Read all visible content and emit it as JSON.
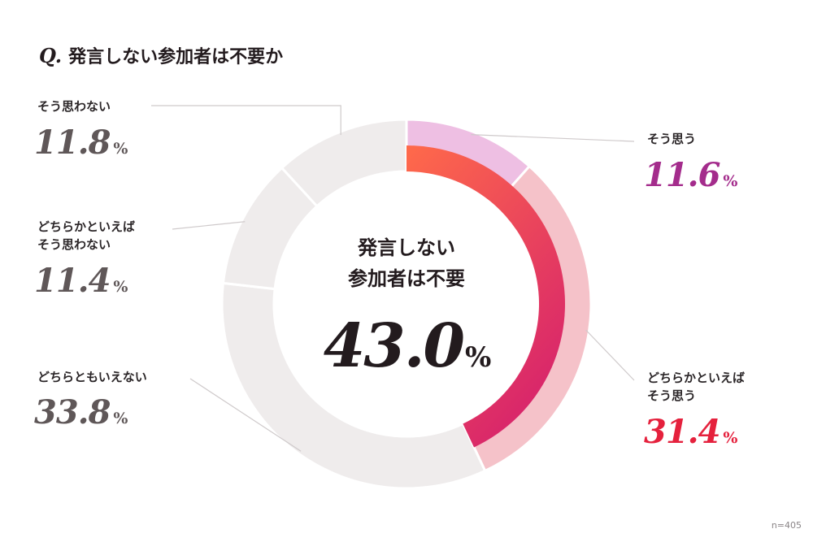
{
  "question": {
    "prefix": "Q.",
    "text": "発言しない参加者は不要か"
  },
  "center": {
    "title": "発言しない\n参加者は不要",
    "value": "43.0",
    "unit": "%"
  },
  "footnote": "n=405",
  "colors": {
    "ring_bg": "#efecec",
    "gray_value": "#5f5758",
    "purple_value": "#a42c8c",
    "red_value": "#e5213d",
    "slice_sou_omou": "#eebfe3",
    "slice_dochira_sou_omou": "#f5c2c9",
    "inner_arc_start": "#ff6a4a",
    "inner_arc_end": "#d8256b"
  },
  "chart_data": {
    "type": "pie",
    "variant": "donut",
    "title": "発言しない参加者は不要か",
    "total_n": 405,
    "categories": [
      "そう思う",
      "どちらかといえばそう思う",
      "どちらともいえない",
      "どちらかといえばそう思わない",
      "そう思わない"
    ],
    "values": [
      11.6,
      31.4,
      33.8,
      11.4,
      11.8
    ],
    "unit": "%",
    "highlight": {
      "label": "発言しない参加者は不要",
      "value": 43.0,
      "composed_of": [
        "そう思う",
        "どちらかといえばそう思う"
      ]
    }
  },
  "labels": [
    {
      "id": "sou-omou",
      "text": "そう思う",
      "value": "11.6",
      "unit": "%",
      "tone": "purple"
    },
    {
      "id": "dochira-sou-omou",
      "text": "どちらかといえば\nそう思う",
      "value": "31.4",
      "unit": "%",
      "tone": "red"
    },
    {
      "id": "dochira-tomo",
      "text": "どちらともいえない",
      "value": "33.8",
      "unit": "%",
      "tone": "gray"
    },
    {
      "id": "dochira-omowanai",
      "text": "どちらかといえば\nそう思わない",
      "value": "11.4",
      "unit": "%",
      "tone": "gray"
    },
    {
      "id": "omowanai",
      "text": "そう思わない",
      "value": "11.8",
      "unit": "%",
      "tone": "gray"
    }
  ]
}
